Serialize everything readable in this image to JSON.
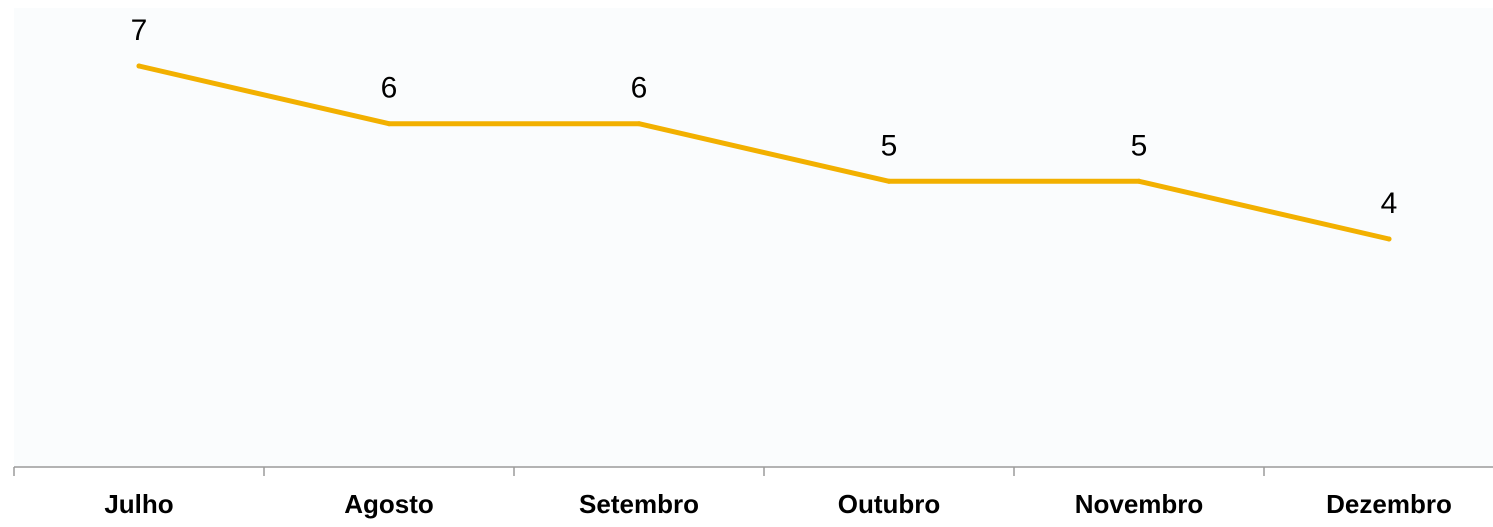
{
  "chart_data": {
    "type": "line",
    "categories": [
      "Julho",
      "Agosto",
      "Setembro",
      "Outubro",
      "Novembro",
      "Dezembro"
    ],
    "series": [
      {
        "values": [
          7,
          6,
          6,
          5,
          5,
          4
        ],
        "color": "#F2B000"
      }
    ],
    "data_labels": [
      "7",
      "6",
      "6",
      "5",
      "5",
      "4"
    ],
    "title": "",
    "xlabel": "",
    "ylabel": "",
    "ylim": [
      0,
      8
    ],
    "grid": false,
    "legend": "none",
    "plot_background": "#FAFCFD",
    "axis_color": "#9A9A9A"
  }
}
